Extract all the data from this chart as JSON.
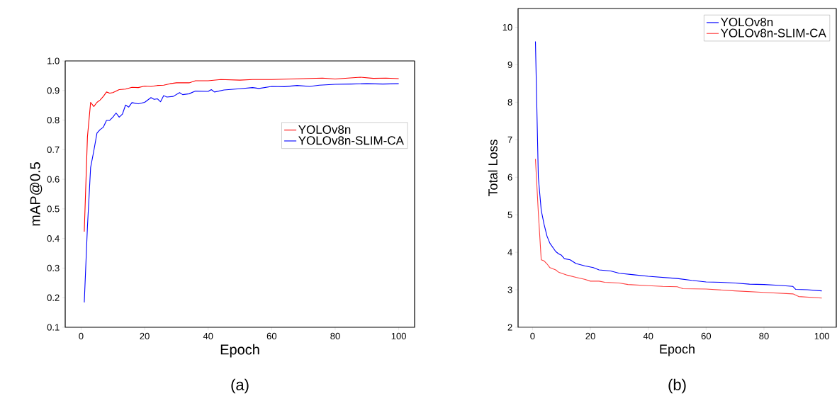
{
  "chart_data": [
    {
      "type": "line",
      "xlabel": "Epoch",
      "ylabel": "mAP@0.5",
      "xlim": [
        -5,
        105
      ],
      "ylim": [
        0.1,
        1.0
      ],
      "xticks": [
        0,
        20,
        40,
        60,
        80,
        100
      ],
      "yticks": [
        0.1,
        0.2,
        0.3,
        0.4,
        0.5,
        0.6,
        0.7,
        0.8,
        0.9,
        {
          "value": 1.0,
          "label": "1.0"
        }
      ],
      "legend": "right",
      "grid": false,
      "annotations": [
        "(a)"
      ],
      "series": [
        {
          "name": "YOLOv8n",
          "color": "#ff0000",
          "x": [
            1,
            2,
            3,
            4,
            5,
            6,
            7,
            8,
            9,
            10,
            12,
            14,
            16,
            18,
            20,
            22,
            24,
            26,
            28,
            30,
            34,
            36,
            40,
            44,
            50,
            54,
            60,
            66,
            70,
            76,
            80,
            84,
            88,
            92,
            96,
            100
          ],
          "values": [
            0.423,
            0.744,
            0.86,
            0.846,
            0.86,
            0.868,
            0.88,
            0.895,
            0.891,
            0.893,
            0.903,
            0.905,
            0.911,
            0.91,
            0.915,
            0.914,
            0.917,
            0.918,
            0.923,
            0.926,
            0.926,
            0.933,
            0.933,
            0.937,
            0.935,
            0.937,
            0.937,
            0.939,
            0.94,
            0.942,
            0.939,
            0.942,
            0.945,
            0.941,
            0.942,
            0.94
          ]
        },
        {
          "name": "YOLOv8n-SLIM-CA",
          "color": "#0000ff",
          "x": [
            1,
            2,
            3,
            4,
            5,
            6,
            7,
            8,
            9,
            10,
            11,
            12,
            13,
            14,
            15,
            16,
            18,
            20,
            22,
            23,
            24,
            25,
            26,
            27,
            29,
            31,
            32,
            34,
            36,
            40,
            41,
            42,
            45,
            50,
            54,
            56,
            60,
            64,
            68,
            72,
            75,
            80,
            85,
            90,
            95,
            100
          ],
          "values": [
            0.184,
            0.44,
            0.64,
            0.696,
            0.756,
            0.768,
            0.776,
            0.799,
            0.799,
            0.81,
            0.824,
            0.81,
            0.82,
            0.851,
            0.844,
            0.859,
            0.855,
            0.86,
            0.876,
            0.87,
            0.872,
            0.862,
            0.883,
            0.878,
            0.88,
            0.893,
            0.886,
            0.889,
            0.898,
            0.897,
            0.903,
            0.895,
            0.902,
            0.906,
            0.91,
            0.907,
            0.914,
            0.913,
            0.917,
            0.914,
            0.918,
            0.921,
            0.922,
            0.923,
            0.922,
            0.923
          ]
        }
      ]
    },
    {
      "type": "line",
      "xlabel": "Epoch",
      "ylabel": "Total Loss",
      "xlim": [
        -5,
        105
      ],
      "ylim": [
        2,
        10.5
      ],
      "xticks": [
        0,
        20,
        40,
        60,
        80,
        100
      ],
      "yticks": [
        2,
        3,
        4,
        5,
        6,
        7,
        8,
        9,
        10
      ],
      "legend": "top right",
      "grid": false,
      "annotations": [
        "(b)"
      ],
      "series": [
        {
          "name": "YOLOv8n",
          "color": "#0000ff",
          "x": [
            1,
            2,
            3,
            4,
            5,
            6,
            8,
            9,
            10,
            11,
            13,
            15,
            18,
            21,
            23,
            27,
            30,
            35,
            40,
            45,
            50,
            55,
            60,
            65,
            70,
            75,
            80,
            85,
            90,
            91,
            95,
            100
          ],
          "values": [
            9.62,
            6.0,
            5.12,
            4.74,
            4.43,
            4.24,
            4.02,
            3.96,
            3.92,
            3.83,
            3.8,
            3.7,
            3.64,
            3.59,
            3.53,
            3.5,
            3.44,
            3.4,
            3.36,
            3.33,
            3.3,
            3.25,
            3.21,
            3.2,
            3.18,
            3.15,
            3.14,
            3.12,
            3.09,
            3.01,
            3.0,
            2.97
          ]
        },
        {
          "name": "YOLOv8n-SLIM-CA",
          "color": "#ff4040",
          "x": [
            1,
            2,
            3,
            4,
            5,
            6,
            8,
            9,
            12,
            15,
            18,
            20,
            23,
            25,
            30,
            33,
            40,
            45,
            50,
            52,
            60,
            70,
            80,
            90,
            92,
            100
          ],
          "values": [
            6.49,
            5.06,
            3.8,
            3.77,
            3.69,
            3.59,
            3.53,
            3.47,
            3.39,
            3.33,
            3.28,
            3.23,
            3.23,
            3.2,
            3.18,
            3.14,
            3.11,
            3.09,
            3.08,
            3.03,
            3.02,
            2.97,
            2.93,
            2.89,
            2.82,
            2.78
          ]
        }
      ]
    }
  ]
}
